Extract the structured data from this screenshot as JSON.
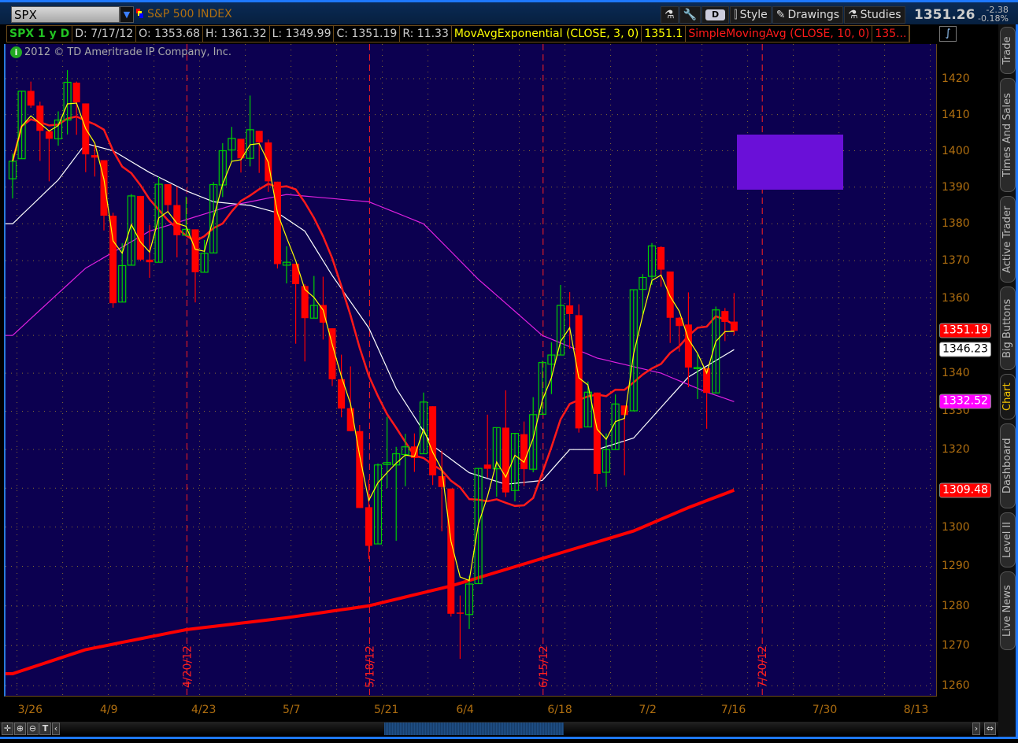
{
  "topbar": {
    "symbol": "SPX",
    "symbol_name": "S&P 500 INDEX",
    "period_button": "D",
    "style_label": "Style",
    "drawings_label": "Drawings",
    "studies_label": "Studies",
    "last_price": "1351.26",
    "net_change": "-2.38",
    "pct_change": "-0.18%"
  },
  "info": {
    "title": "SPX 1 y D",
    "date": "D: 7/17/12",
    "open": "O: 1353.68",
    "high": "H: 1361.32",
    "low": "L: 1349.99",
    "close": "C: 1351.19",
    "range": "R: 11.33",
    "study1": "MovAvgExponential (CLOSE, 3, 0)",
    "study1_value": "1351.1",
    "study2": "SimpleMovingAvg (CLOSE, 10, 0)",
    "study2_value": "135..."
  },
  "copyright": "2012 © TD Ameritrade IP Company, Inc.",
  "side_tabs": [
    "Trade",
    "Times And Sales",
    "Active Trader",
    "Big Buttons",
    "Chart",
    "Dashboard",
    "Level II",
    "Live News"
  ],
  "active_tab": "Chart",
  "colors": {
    "background": "#0c0050",
    "up": "#00d000",
    "down": "#ff0000",
    "ema3": "#ffff00",
    "sma10": "#ff1a1a",
    "sma20": "#ffffff",
    "sma50": "#e020e0",
    "sma200": "#ff0000",
    "drawing": "#6a10d8"
  },
  "chart_data": {
    "type": "candlestick",
    "y_scale": "log",
    "ylim": [
      1256,
      1428
    ],
    "y_ticks": [
      1260,
      1270,
      1280,
      1290,
      1300,
      1310,
      1320,
      1330,
      1340,
      1350,
      1360,
      1370,
      1380,
      1390,
      1400,
      1410,
      1420
    ],
    "y_tick_labels": [
      "1260",
      "1270",
      "1280",
      "1290",
      "1300",
      "",
      "1320",
      "1330",
      "1340",
      "",
      "1360",
      "1370",
      "1380",
      "1390",
      "1400",
      "1410",
      "1420"
    ],
    "x_tick_labels": [
      "3/26",
      "4/9",
      "4/23",
      "5/7",
      "5/21",
      "6/4",
      "6/18",
      "7/2",
      "7/16",
      "7/30",
      "8/13"
    ],
    "expiration_lines": [
      "4/20/12",
      "5/18/12",
      "6/15/12",
      "7/20/12"
    ],
    "grid": true,
    "candles": [
      [
        "3/23",
        1392.3,
        1399.2,
        1386.9,
        1397.1
      ],
      [
        "3/26",
        1397.8,
        1416.6,
        1397.8,
        1416.5
      ],
      [
        "3/27",
        1416.6,
        1419.2,
        1411.9,
        1412.5
      ],
      [
        "3/28",
        1412.5,
        1413.6,
        1397.2,
        1405.5
      ],
      [
        "3/29",
        1405.4,
        1405.4,
        1391.6,
        1403.3
      ],
      [
        "3/30",
        1403.3,
        1410.9,
        1401.4,
        1408.5
      ],
      [
        "4/2",
        1408.5,
        1422.4,
        1404.5,
        1419.0
      ],
      [
        "4/3",
        1418.9,
        1419.2,
        1404.4,
        1413.4
      ],
      [
        "4/4",
        1413.1,
        1413.1,
        1394.1,
        1399.0
      ],
      [
        "4/5",
        1398.8,
        1401.6,
        1392.9,
        1398.1
      ],
      [
        "4/9",
        1397.4,
        1397.4,
        1378.2,
        1382.2
      ],
      [
        "4/10",
        1382.2,
        1383.0,
        1357.4,
        1358.6
      ],
      [
        "4/11",
        1358.9,
        1374.7,
        1358.9,
        1368.7
      ],
      [
        "4/12",
        1368.8,
        1388.1,
        1368.8,
        1387.6
      ],
      [
        "4/13",
        1387.6,
        1387.6,
        1369.9,
        1370.3
      ],
      [
        "4/16",
        1370.3,
        1379.7,
        1365.4,
        1369.6
      ],
      [
        "4/17",
        1369.6,
        1392.8,
        1369.6,
        1390.8
      ],
      [
        "4/18",
        1390.8,
        1390.8,
        1383.3,
        1385.1
      ],
      [
        "4/19",
        1385.1,
        1390.1,
        1370.9,
        1376.9
      ],
      [
        "4/20",
        1376.9,
        1387.4,
        1376.9,
        1378.5
      ],
      [
        "4/23",
        1378.5,
        1378.5,
        1358.8,
        1366.9
      ],
      [
        "4/24",
        1366.9,
        1375.6,
        1366.8,
        1372.0
      ],
      [
        "4/25",
        1372.1,
        1391.4,
        1372.1,
        1390.7
      ],
      [
        "4/26",
        1390.6,
        1402.1,
        1387.3,
        1400.0
      ],
      [
        "4/27",
        1400.2,
        1406.6,
        1397.0,
        1403.4
      ],
      [
        "4/30",
        1403.3,
        1403.3,
        1394.0,
        1397.9
      ],
      [
        "5/1",
        1397.9,
        1415.3,
        1395.7,
        1405.8
      ],
      [
        "5/2",
        1405.5,
        1405.5,
        1393.9,
        1402.3
      ],
      [
        "5/3",
        1402.3,
        1403.1,
        1388.7,
        1391.6
      ],
      [
        "5/4",
        1391.5,
        1391.5,
        1367.9,
        1369.1
      ],
      [
        "5/7",
        1368.8,
        1373.9,
        1363.9,
        1369.6
      ],
      [
        "5/8",
        1369.2,
        1369.2,
        1347.8,
        1363.7
      ],
      [
        "5/9",
        1363.2,
        1363.7,
        1343.1,
        1354.6
      ],
      [
        "5/10",
        1354.6,
        1365.9,
        1354.6,
        1358.0
      ],
      [
        "5/11",
        1358.1,
        1365.7,
        1348.9,
        1353.4
      ],
      [
        "5/14",
        1351.9,
        1351.9,
        1336.6,
        1338.4
      ],
      [
        "5/15",
        1338.4,
        1344.9,
        1328.4,
        1330.7
      ],
      [
        "5/16",
        1330.8,
        1341.8,
        1324.8,
        1324.8
      ],
      [
        "5/17",
        1324.8,
        1326.4,
        1304.9,
        1304.9
      ],
      [
        "5/18",
        1305.1,
        1312.2,
        1291.9,
        1295.2
      ],
      [
        "5/21",
        1295.7,
        1316.4,
        1295.7,
        1316.0
      ],
      [
        "5/22",
        1316.1,
        1328.5,
        1310.0,
        1316.6
      ],
      [
        "5/23",
        1316.0,
        1320.7,
        1296.5,
        1318.9
      ],
      [
        "5/24",
        1318.7,
        1324.1,
        1310.5,
        1320.7
      ],
      [
        "5/25",
        1320.8,
        1324.2,
        1314.2,
        1317.8
      ],
      [
        "5/29",
        1318.9,
        1334.9,
        1318.9,
        1332.4
      ],
      [
        "5/30",
        1331.3,
        1331.3,
        1310.8,
        1313.3
      ],
      [
        "5/31",
        1313.1,
        1319.7,
        1298.9,
        1310.3
      ],
      [
        "6/1",
        1309.9,
        1309.9,
        1277.3,
        1278.0
      ],
      [
        "6/4",
        1278.3,
        1282.6,
        1266.7,
        1278.2
      ],
      [
        "6/5",
        1277.8,
        1287.6,
        1274.2,
        1285.5
      ],
      [
        "6/6",
        1285.6,
        1315.1,
        1285.6,
        1315.1
      ],
      [
        "6/7",
        1316.1,
        1329.1,
        1312.7,
        1315.0
      ],
      [
        "6/8",
        1315.0,
        1325.8,
        1307.8,
        1325.7
      ],
      [
        "6/11",
        1325.7,
        1335.5,
        1307.7,
        1308.9
      ],
      [
        "6/12",
        1309.4,
        1324.3,
        1306.6,
        1324.2
      ],
      [
        "6/13",
        1324.0,
        1327.3,
        1310.5,
        1314.9
      ],
      [
        "6/14",
        1314.9,
        1333.7,
        1314.1,
        1329.1
      ],
      [
        "6/15",
        1329.2,
        1343.3,
        1329.2,
        1342.8
      ],
      [
        "6/18",
        1342.4,
        1348.2,
        1334.5,
        1344.8
      ],
      [
        "6/19",
        1344.8,
        1363.5,
        1344.8,
        1358.0
      ],
      [
        "6/20",
        1358.0,
        1361.6,
        1346.5,
        1355.7
      ],
      [
        "6/21",
        1355.4,
        1358.3,
        1324.4,
        1325.5
      ],
      [
        "6/22",
        1325.9,
        1337.8,
        1325.9,
        1335.0
      ],
      [
        "6/25",
        1334.9,
        1334.9,
        1309.3,
        1313.7
      ],
      [
        "6/26",
        1314.1,
        1324.2,
        1310.3,
        1320.0
      ],
      [
        "6/27",
        1320.0,
        1334.4,
        1320.0,
        1331.9
      ],
      [
        "6/28",
        1331.5,
        1331.5,
        1313.3,
        1329.0
      ],
      [
        "6/29",
        1330.1,
        1362.2,
        1330.1,
        1362.2
      ],
      [
        "7/2",
        1362.3,
        1366.4,
        1355.7,
        1365.5
      ],
      [
        "7/3",
        1365.8,
        1374.8,
        1363.5,
        1374.0
      ],
      [
        "7/5",
        1373.7,
        1373.9,
        1363.0,
        1367.6
      ],
      [
        "7/6",
        1367.1,
        1367.1,
        1348.0,
        1354.7
      ],
      [
        "7/9",
        1354.7,
        1354.9,
        1345.7,
        1352.5
      ],
      [
        "7/10",
        1352.9,
        1361.5,
        1336.3,
        1341.5
      ],
      [
        "7/11",
        1341.4,
        1345.0,
        1333.2,
        1341.5
      ],
      [
        "7/12",
        1341.3,
        1341.3,
        1325.4,
        1334.8
      ],
      [
        "7/13",
        1334.8,
        1357.7,
        1334.8,
        1356.8
      ],
      [
        "7/16",
        1356.5,
        1357.3,
        1348.5,
        1353.6
      ],
      [
        "7/17",
        1353.68,
        1361.32,
        1349.99,
        1351.19
      ]
    ],
    "studies": [
      {
        "name": "MovAvgExponential (CLOSE, 3, 0)",
        "type": "ema",
        "length": 3,
        "color": "#ffff00"
      },
      {
        "name": "SimpleMovingAvg (CLOSE, 10, 0)",
        "type": "sma",
        "length": 10,
        "color": "#ff1a1a"
      },
      {
        "type": "line",
        "color": "#ffffff",
        "last": "1346.23",
        "points": [
          [
            "3/23",
            1380
          ],
          [
            "3/30",
            1392
          ],
          [
            "4/4",
            1402
          ],
          [
            "4/10",
            1400
          ],
          [
            "4/16",
            1394
          ],
          [
            "4/20",
            1389
          ],
          [
            "4/25",
            1386
          ],
          [
            "5/1",
            1385
          ],
          [
            "5/4",
            1383
          ],
          [
            "5/9",
            1378
          ],
          [
            "5/14",
            1366
          ],
          [
            "5/18",
            1352
          ],
          [
            "5/23",
            1336
          ],
          [
            "5/30",
            1321
          ],
          [
            "6/5",
            1314
          ],
          [
            "6/11",
            1311
          ],
          [
            "6/15",
            1312
          ],
          [
            "6/20",
            1320
          ],
          [
            "6/25",
            1320
          ],
          [
            "6/29",
            1323
          ],
          [
            "7/5",
            1331
          ],
          [
            "7/10",
            1339
          ],
          [
            "7/17",
            1346.23
          ]
        ]
      },
      {
        "type": "line",
        "color": "#e020e0",
        "last": "1332.52",
        "points": [
          [
            "3/23",
            1350
          ],
          [
            "4/4",
            1368
          ],
          [
            "4/16",
            1378
          ],
          [
            "4/27",
            1385
          ],
          [
            "5/7",
            1388
          ],
          [
            "5/18",
            1386
          ],
          [
            "5/29",
            1380
          ],
          [
            "6/6",
            1365
          ],
          [
            "6/15",
            1350
          ],
          [
            "6/25",
            1344
          ],
          [
            "7/5",
            1340
          ],
          [
            "7/12",
            1335
          ],
          [
            "7/17",
            1332.52
          ]
        ]
      },
      {
        "type": "line",
        "color": "#ff0000",
        "last": "1309.48",
        "points": [
          [
            "3/23",
            1263
          ],
          [
            "4/4",
            1269
          ],
          [
            "4/20",
            1274
          ],
          [
            "5/7",
            1277
          ],
          [
            "5/18",
            1280
          ],
          [
            "6/1",
            1285
          ],
          [
            "6/15",
            1292
          ],
          [
            "6/29",
            1299
          ],
          [
            "7/10",
            1305
          ],
          [
            "7/17",
            1309.48
          ]
        ]
      }
    ],
    "price_tags": [
      {
        "value": "1351.19",
        "bg": "#ff0000",
        "fg": "#ffffff"
      },
      {
        "value": "1346.23",
        "bg": "#ffffff",
        "fg": "#000000"
      },
      {
        "value": "1332.52",
        "bg": "#ff00ff",
        "fg": "#ffffff"
      },
      {
        "value": "1309.48",
        "bg": "#ff0000",
        "fg": "#ffffff"
      }
    ],
    "drawings": [
      {
        "type": "rectangle",
        "color": "#6a10d8"
      }
    ]
  }
}
